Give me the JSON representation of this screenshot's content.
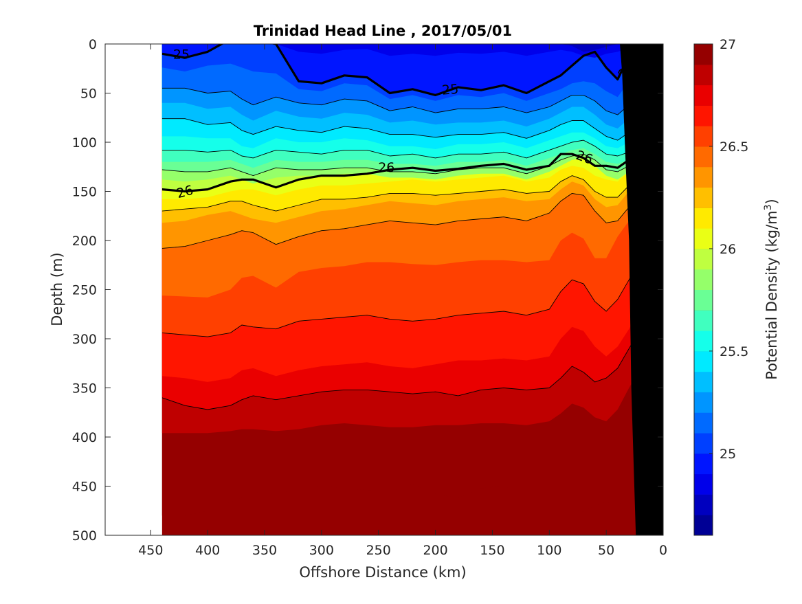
{
  "chart_data": {
    "type": "heatmap",
    "subtype": "filled-contour-section",
    "title": "Trinidad Head Line , 2017/05/01",
    "xlabel": "Offshore Distance (km)",
    "ylabel": "Depth (m)",
    "x_axis_reversed": true,
    "y_axis_reversed": true,
    "xlim": [
      0,
      490
    ],
    "ylim": [
      0,
      500
    ],
    "xticks": [
      450,
      400,
      350,
      300,
      250,
      200,
      150,
      100,
      50,
      0
    ],
    "yticks": [
      0,
      50,
      100,
      150,
      200,
      250,
      300,
      350,
      400,
      450,
      500
    ],
    "colorbar": {
      "label": "Potential Density (kg/m",
      "label_sup": "3",
      "label_end": ")",
      "range": [
        24.6,
        27.0
      ],
      "step": 0.1,
      "ticks": [
        25,
        25.5,
        26,
        26.5,
        27
      ],
      "tick_labels": [
        "25",
        "25.5",
        "26",
        "26.5",
        "27"
      ],
      "colormap": "jet"
    },
    "data_extent": {
      "x_offshore_start_km": 440,
      "x_nearshore_end_km": 20
    },
    "stations_x_km": [
      440,
      420,
      400,
      380,
      370,
      360,
      340,
      320,
      300,
      280,
      260,
      240,
      220,
      200,
      180,
      160,
      140,
      120,
      100,
      90,
      80,
      70,
      60,
      50,
      40,
      30,
      20
    ],
    "isopycnal_depths_m": [
      {
        "sigma": 24.8,
        "depths": [
          -10,
          -10,
          -10,
          -10,
          -10,
          -10,
          -10,
          -10,
          -10,
          -10,
          -10,
          -10,
          -10,
          -10,
          -10,
          -10,
          -10,
          -10,
          -10,
          0,
          2,
          8,
          6,
          3,
          0,
          -10,
          -10
        ]
      },
      {
        "sigma": 24.9,
        "depths": [
          -10,
          -10,
          -10,
          -10,
          -10,
          -10,
          0,
          8,
          10,
          6,
          5,
          12,
          10,
          12,
          9,
          10,
          8,
          12,
          8,
          6,
          8,
          12,
          14,
          10,
          8,
          4,
          -5
        ]
      },
      {
        "sigma": 25.0,
        "depths": [
          10,
          14,
          8,
          -5,
          -5,
          -5,
          0,
          38,
          40,
          32,
          34,
          50,
          46,
          52,
          44,
          47,
          42,
          50,
          38,
          32,
          22,
          12,
          8,
          24,
          36,
          12,
          -5
        ]
      },
      {
        "sigma": 25.1,
        "depths": [
          24,
          28,
          22,
          20,
          24,
          28,
          30,
          46,
          48,
          40,
          42,
          56,
          52,
          58,
          52,
          54,
          50,
          58,
          50,
          46,
          40,
          38,
          40,
          48,
          54,
          38,
          28
        ]
      },
      {
        "sigma": 25.2,
        "depths": [
          45,
          45,
          50,
          48,
          56,
          62,
          54,
          60,
          62,
          56,
          58,
          68,
          64,
          70,
          66,
          66,
          64,
          70,
          64,
          58,
          52,
          52,
          58,
          68,
          72,
          62,
          50
        ]
      },
      {
        "sigma": 25.3,
        "depths": [
          60,
          60,
          66,
          64,
          72,
          78,
          68,
          74,
          76,
          70,
          72,
          80,
          78,
          82,
          80,
          80,
          78,
          84,
          76,
          70,
          64,
          64,
          72,
          82,
          86,
          76,
          64
        ]
      },
      {
        "sigma": 25.4,
        "depths": [
          76,
          76,
          82,
          80,
          88,
          92,
          84,
          88,
          90,
          84,
          86,
          92,
          92,
          95,
          92,
          92,
          90,
          96,
          88,
          82,
          78,
          78,
          86,
          94,
          98,
          90,
          78
        ]
      },
      {
        "sigma": 25.5,
        "depths": [
          94,
          94,
          96,
          96,
          104,
          106,
          96,
          100,
          100,
          96,
          98,
          104,
          104,
          107,
          102,
          102,
          100,
          106,
          98,
          94,
          90,
          90,
          96,
          104,
          106,
          100,
          90
        ]
      },
      {
        "sigma": 25.6,
        "depths": [
          108,
          108,
          110,
          108,
          114,
          116,
          108,
          110,
          112,
          108,
          108,
          114,
          112,
          116,
          112,
          112,
          110,
          116,
          108,
          104,
          100,
          98,
          104,
          112,
          114,
          110,
          100
        ]
      },
      {
        "sigma": 25.7,
        "depths": [
          120,
          120,
          120,
          118,
          122,
          126,
          118,
          120,
          120,
          118,
          118,
          122,
          122,
          124,
          120,
          120,
          118,
          124,
          116,
          112,
          108,
          106,
          112,
          120,
          122,
          118,
          110
        ]
      },
      {
        "sigma": 25.8,
        "depths": [
          128,
          130,
          130,
          126,
          130,
          134,
          126,
          128,
          128,
          126,
          126,
          130,
          130,
          132,
          128,
          126,
          126,
          132,
          124,
          118,
          114,
          112,
          118,
          128,
          130,
          124,
          116
        ]
      },
      {
        "sigma": 25.9,
        "depths": [
          138,
          140,
          138,
          134,
          138,
          142,
          136,
          134,
          134,
          132,
          132,
          136,
          136,
          138,
          134,
          132,
          132,
          138,
          130,
          124,
          118,
          116,
          124,
          134,
          138,
          130,
          122
        ]
      },
      {
        "sigma": 26.0,
        "depths": [
          148,
          150,
          148,
          140,
          138,
          138,
          146,
          138,
          134,
          134,
          132,
          128,
          126,
          129,
          127,
          124,
          122,
          128,
          124,
          112,
          112,
          116,
          124,
          124,
          126,
          118,
          104
        ]
      },
      {
        "sigma": 26.1,
        "depths": [
          158,
          158,
          156,
          150,
          148,
          148,
          154,
          148,
          144,
          144,
          142,
          140,
          138,
          140,
          138,
          136,
          134,
          140,
          136,
          128,
          124,
          126,
          134,
          138,
          140,
          130,
          118
        ]
      },
      {
        "sigma": 26.2,
        "depths": [
          170,
          168,
          166,
          160,
          160,
          164,
          170,
          164,
          158,
          158,
          156,
          152,
          152,
          154,
          152,
          150,
          148,
          152,
          150,
          140,
          134,
          138,
          150,
          156,
          156,
          144,
          130
        ]
      },
      {
        "sigma": 26.3,
        "depths": [
          182,
          180,
          174,
          170,
          174,
          178,
          182,
          176,
          170,
          168,
          164,
          160,
          162,
          164,
          160,
          158,
          156,
          160,
          158,
          148,
          140,
          144,
          158,
          166,
          164,
          150,
          134
        ]
      },
      {
        "sigma": 26.4,
        "depths": [
          208,
          206,
          200,
          194,
          190,
          192,
          204,
          196,
          190,
          188,
          184,
          180,
          182,
          184,
          180,
          178,
          176,
          180,
          172,
          160,
          152,
          154,
          170,
          182,
          180,
          166,
          150
        ]
      },
      {
        "sigma": 26.5,
        "depths": [
          256,
          257,
          258,
          250,
          238,
          236,
          248,
          232,
          228,
          226,
          222,
          222,
          224,
          225,
          222,
          220,
          220,
          222,
          220,
          200,
          192,
          198,
          218,
          218,
          196,
          180,
          170
        ]
      },
      {
        "sigma": 26.6,
        "depths": [
          294,
          296,
          298,
          294,
          286,
          288,
          290,
          282,
          280,
          278,
          276,
          280,
          282,
          280,
          276,
          274,
          272,
          276,
          270,
          252,
          240,
          244,
          262,
          272,
          260,
          240,
          220
        ]
      },
      {
        "sigma": 26.7,
        "depths": [
          338,
          340,
          344,
          340,
          332,
          330,
          338,
          332,
          328,
          326,
          324,
          328,
          330,
          326,
          322,
          322,
          320,
          322,
          318,
          300,
          288,
          292,
          308,
          318,
          308,
          290,
          270
        ]
      },
      {
        "sigma": 26.8,
        "depths": [
          360,
          368,
          372,
          368,
          362,
          358,
          362,
          358,
          354,
          352,
          352,
          354,
          356,
          354,
          358,
          352,
          350,
          352,
          350,
          340,
          328,
          334,
          344,
          340,
          330,
          310,
          290
        ]
      },
      {
        "sigma": 26.9,
        "depths": [
          396,
          396,
          396,
          394,
          392,
          392,
          394,
          392,
          388,
          386,
          388,
          390,
          390,
          388,
          388,
          386,
          386,
          388,
          384,
          376,
          366,
          370,
          380,
          384,
          372,
          350,
          330
        ]
      },
      {
        "sigma": 27.0,
        "depths": [
          480,
          480,
          475,
          466,
          462,
          456,
          458,
          452,
          450,
          452,
          454,
          456,
          448,
          458,
          462,
          452,
          450,
          458,
          462,
          466,
          472,
          476,
          470,
          466,
          470,
          460,
          440
        ]
      }
    ],
    "contour_lines": {
      "thin_sigmas": [
        25.2,
        25.4,
        25.6,
        25.8,
        26.2,
        26.4,
        26.6,
        26.8
      ],
      "bold_sigmas": [
        25.0,
        26.0
      ]
    },
    "contour_labels": [
      {
        "text": "25",
        "x": 423,
        "y": 10,
        "angle": 0
      },
      {
        "text": "25",
        "x": 187,
        "y": 46,
        "angle": -5
      },
      {
        "text": "25",
        "x": 33,
        "y": 26,
        "angle": -55
      },
      {
        "text": "26",
        "x": 420,
        "y": 150,
        "angle": -15
      },
      {
        "text": "26",
        "x": 243,
        "y": 125,
        "angle": 0
      },
      {
        "text": "26",
        "x": 69,
        "y": 115,
        "angle": 20
      }
    ],
    "bathymetry": {
      "fill": "#000000",
      "polygon_km_m": [
        [
          0,
          0
        ],
        [
          0,
          500
        ],
        [
          24,
          500
        ],
        [
          28,
          350
        ],
        [
          30,
          200
        ],
        [
          33,
          120
        ],
        [
          36,
          30
        ],
        [
          38,
          0
        ]
      ]
    },
    "legend": "none",
    "grid": false
  }
}
